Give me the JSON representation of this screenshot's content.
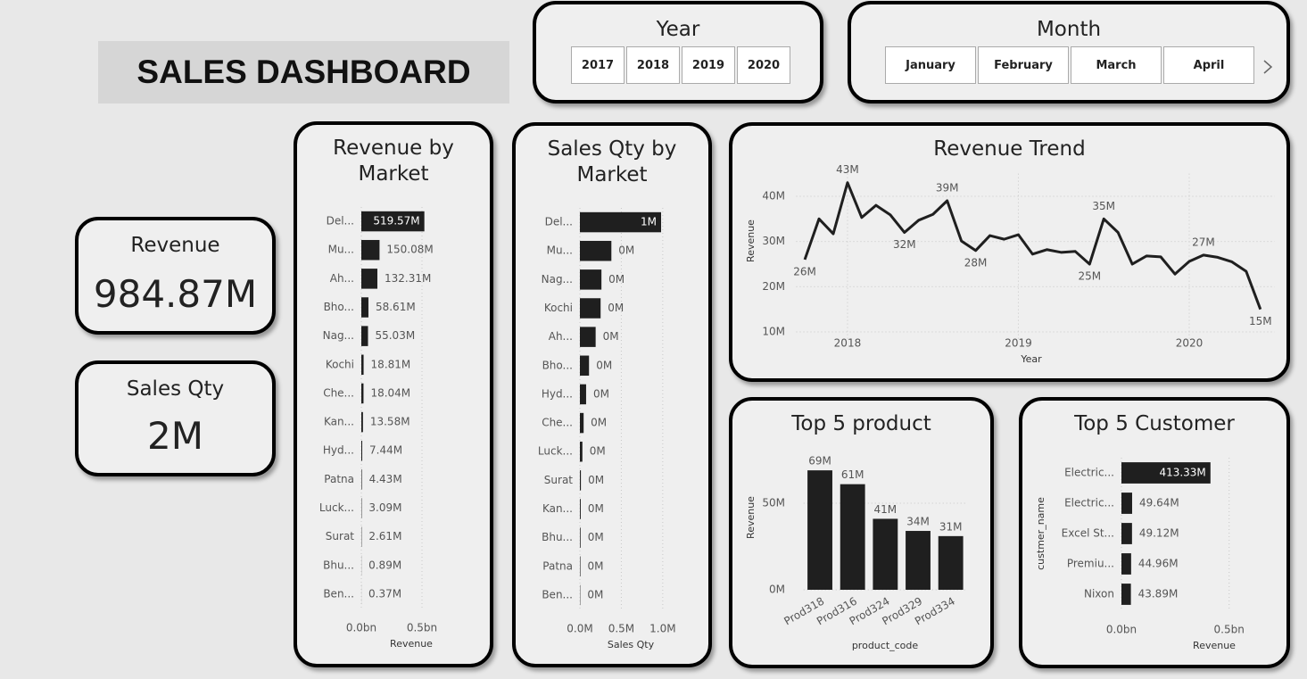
{
  "header": {
    "title": "SALES DASHBOARD"
  },
  "slicers": [
    {
      "title": "Year",
      "options": [
        "2017",
        "2018",
        "2019",
        "2020"
      ]
    },
    {
      "title": "Month",
      "options": [
        "January",
        "February",
        "March",
        "April"
      ]
    }
  ],
  "cards": [
    {
      "label": "Revenue",
      "value": "984.87M"
    },
    {
      "label": "Sales Qty",
      "value": "2M"
    }
  ],
  "chart_data": [
    {
      "type": "hbar",
      "title": "Revenue by Market",
      "color": "#1f1f1f",
      "grid": true,
      "categories": [
        "Del...",
        "Mu...",
        "Ah...",
        "Bho...",
        "Nag...",
        "Kochi",
        "Che...",
        "Kan...",
        "Hyd...",
        "Patna",
        "Luck...",
        "Surat",
        "Bhu...",
        "Ben..."
      ],
      "values": [
        0.51957,
        0.15008,
        0.13231,
        0.05861,
        0.05503,
        0.01881,
        0.01804,
        0.01358,
        0.00744,
        0.00443,
        0.00309,
        0.00261,
        0.00089,
        0.00037
      ],
      "value_labels": [
        "519.57M",
        "150.08M",
        "132.31M",
        "58.61M",
        "55.03M",
        "18.81M",
        "18.04M",
        "13.58M",
        "7.44M",
        "4.43M",
        "3.09M",
        "2.61M",
        "0.89M",
        "0.37M"
      ],
      "xlim": [
        0,
        1
      ],
      "xticks": [
        {
          "value": 0,
          "label": "0.0bn"
        },
        {
          "value": 0.5,
          "label": "0.5bn"
        }
      ],
      "x_label": "Revenue"
    },
    {
      "type": "hbar",
      "title": "Sales Qty by Market",
      "color": "#1f1f1f",
      "grid": true,
      "categories": [
        "Del...",
        "Mu...",
        "Nag...",
        "Kochi",
        "Ah...",
        "Bho...",
        "Hyd...",
        "Che...",
        "Luck...",
        "Surat",
        "Kan...",
        "Bhu...",
        "Patna",
        "Ben..."
      ],
      "values": [
        0.98,
        0.38,
        0.26,
        0.25,
        0.19,
        0.11,
        0.075,
        0.045,
        0.03,
        0.012,
        0.01,
        0.008,
        0.006,
        0.004
      ],
      "value_labels": [
        "1M",
        "0M",
        "0M",
        "0M",
        "0M",
        "0M",
        "0M",
        "0M",
        "0M",
        "0M",
        "0M",
        "0M",
        "0M",
        "0M"
      ],
      "xlim": [
        0,
        1.4
      ],
      "xticks": [
        {
          "value": 0,
          "label": "0.0M"
        },
        {
          "value": 0.5,
          "label": "0.5M"
        },
        {
          "value": 1,
          "label": "1.0M"
        }
      ],
      "x_label": "Sales Qty"
    },
    {
      "type": "line",
      "title": "Revenue Trend",
      "color": "#1f1f1f",
      "grid": true,
      "x": [
        2017.75,
        2017.8333,
        2017.9167,
        2018,
        2018.0833,
        2018.1667,
        2018.25,
        2018.3333,
        2018.4167,
        2018.5,
        2018.5833,
        2018.6667,
        2018.75,
        2018.8333,
        2018.9167,
        2019,
        2019.0833,
        2019.1667,
        2019.25,
        2019.3333,
        2019.4167,
        2019.5,
        2019.5833,
        2019.6667,
        2019.75,
        2019.8333,
        2019.9167,
        2020,
        2020.0833,
        2020.1667,
        2020.25,
        2020.3333,
        2020.4167
      ],
      "values": [
        26,
        35,
        31.7,
        43,
        35.3,
        38,
        35.9,
        32,
        34.7,
        36,
        39,
        30.1,
        28,
        31.3,
        30.5,
        31.5,
        27.2,
        28.2,
        27.6,
        27.8,
        25,
        35,
        32,
        25,
        26.8,
        26.6,
        22.8,
        25.6,
        27,
        26.5,
        25.5,
        23.4,
        15
      ],
      "value_labels": [
        "26M",
        null,
        null,
        "43M",
        null,
        null,
        null,
        "32M",
        null,
        null,
        "39M",
        null,
        "28M",
        null,
        null,
        null,
        null,
        null,
        null,
        null,
        "25M",
        "35M",
        null,
        null,
        null,
        null,
        null,
        null,
        "27M",
        null,
        null,
        null,
        "15M"
      ],
      "xlim": [
        2017.7,
        2020.5
      ],
      "xticks": [
        2018,
        2019,
        2020
      ],
      "ylim": [
        8,
        45
      ],
      "yticks": [
        {
          "value": 10,
          "label": "10M"
        },
        {
          "value": 20,
          "label": "20M"
        },
        {
          "value": 30,
          "label": "30M"
        },
        {
          "value": 40,
          "label": "40M"
        }
      ],
      "x_label": "Year",
      "y_label": "Revenue"
    },
    {
      "type": "bar",
      "title": "Top 5 product",
      "color": "#1f1f1f",
      "grid": true,
      "categories": [
        "Prod318",
        "Prod316",
        "Prod324",
        "Prod329",
        "Prod334"
      ],
      "values": [
        69,
        61,
        41,
        34,
        31
      ],
      "value_labels": [
        "69M",
        "61M",
        "41M",
        "34M",
        "31M"
      ],
      "ylim": [
        0,
        75
      ],
      "yticks": [
        {
          "value": 0,
          "label": "0M"
        },
        {
          "value": 50,
          "label": "50M"
        }
      ],
      "x_label": "product_code",
      "y_label": "Revenue"
    },
    {
      "type": "hbar",
      "title": "Top 5 Customer",
      "color": "#1f1f1f",
      "grid": true,
      "categories": [
        "Electric...",
        "Electric...",
        "Excel St...",
        "Premiu...",
        "Nixon"
      ],
      "values": [
        0.41333,
        0.04964,
        0.04912,
        0.04496,
        0.04389
      ],
      "value_labels": [
        "413.33M",
        "49.64M",
        "49.12M",
        "44.96M",
        "43.89M"
      ],
      "xlim": [
        0,
        0.7
      ],
      "xticks": [
        {
          "value": 0,
          "label": "0.0bn"
        },
        {
          "value": 0.5,
          "label": "0.5bn"
        }
      ],
      "x_label": "Revenue",
      "y_label": "custmer_name"
    }
  ]
}
